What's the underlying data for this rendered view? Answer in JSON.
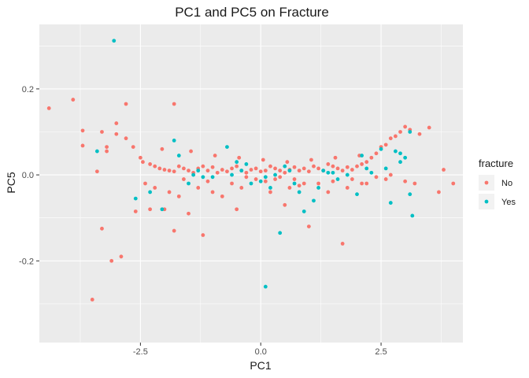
{
  "chart_data": {
    "type": "scatter",
    "title": "PC1 and PC5 on Fracture",
    "xlabel": "PC1",
    "ylabel": "PC5",
    "xlim": [
      -4.6,
      4.2
    ],
    "ylim": [
      -0.39,
      0.35
    ],
    "x_ticks": [
      -2.5,
      0.0,
      2.5
    ],
    "x_tick_labels": [
      "-2.5",
      "0.0",
      "2.5"
    ],
    "y_ticks": [
      -0.2,
      0.0,
      0.2
    ],
    "y_tick_labels": [
      "-0.2",
      "0.0",
      "0.2"
    ],
    "grid": true,
    "legend": {
      "title": "fracture",
      "placement": "right"
    },
    "colors": {
      "No": "#F8766D",
      "Yes": "#00BFC4",
      "panel": "#EBEBEB",
      "grid": "#FFFFFF"
    },
    "series": [
      {
        "name": "No",
        "color": "#F8766D",
        "x": [
          -4.4,
          -3.9,
          -3.7,
          -3.7,
          -3.4,
          -3.2,
          -3.2,
          -3.0,
          -2.8,
          -2.65,
          -2.5,
          -2.45,
          -2.3,
          -2.2,
          -2.1,
          -2.0,
          -1.9,
          -1.8,
          -1.7,
          -1.6,
          -1.5,
          -1.4,
          -1.3,
          -1.2,
          -1.1,
          -1.0,
          -0.9,
          -0.8,
          -0.7,
          -0.6,
          -0.5,
          -0.4,
          -0.3,
          -0.2,
          -0.1,
          0.0,
          0.1,
          0.2,
          0.3,
          0.4,
          0.5,
          0.6,
          0.7,
          0.8,
          0.9,
          1.0,
          1.1,
          1.2,
          1.3,
          1.4,
          1.5,
          1.6,
          1.7,
          1.8,
          1.9,
          2.0,
          2.1,
          2.2,
          2.3,
          2.4,
          2.5,
          2.6,
          2.7,
          2.8,
          2.9,
          3.0,
          3.1,
          3.3,
          3.5,
          3.7,
          3.8,
          4.0,
          -3.0,
          -2.8,
          -3.3,
          -3.5,
          -3.1,
          -2.9,
          -3.3,
          -1.8,
          -2.6,
          -2.3,
          -2.0,
          -1.8,
          -1.5,
          -1.2,
          -0.5,
          0.5,
          1.0,
          1.7,
          -2.4,
          -2.2,
          -1.9,
          -1.7,
          -1.3,
          -1.0,
          -0.8,
          -0.4,
          0.2,
          0.6,
          0.9,
          1.4,
          1.8,
          2.2,
          2.6,
          3.0,
          -1.6,
          -1.1,
          -0.6,
          0.3,
          0.8,
          1.2,
          1.5,
          1.9,
          2.1,
          2.4,
          2.7,
          3.2,
          -0.3,
          -0.1,
          0.1,
          0.4,
          0.7,
          -2.05,
          -1.45,
          -0.95,
          -0.45,
          0.05,
          0.55,
          1.05,
          1.55,
          2.05
        ],
        "y": [
          0.155,
          0.175,
          0.103,
          0.068,
          0.008,
          0.065,
          0.055,
          0.095,
          0.085,
          0.065,
          0.04,
          0.03,
          0.025,
          0.02,
          0.015,
          0.012,
          0.01,
          0.008,
          0.02,
          0.015,
          0.01,
          0.005,
          0.015,
          0.02,
          0.01,
          0.018,
          0.005,
          0.012,
          0.008,
          0.015,
          0.02,
          0.01,
          0.005,
          0.012,
          0.015,
          0.008,
          0.01,
          0.02,
          0.015,
          0.01,
          0.005,
          0.012,
          0.018,
          0.01,
          0.015,
          0.008,
          0.02,
          0.015,
          0.01,
          0.025,
          0.02,
          0.015,
          0.01,
          0.018,
          0.012,
          0.02,
          0.025,
          0.03,
          0.04,
          0.05,
          0.065,
          0.07,
          0.085,
          0.09,
          0.1,
          0.112,
          0.105,
          0.095,
          0.11,
          -0.04,
          0.012,
          -0.02,
          0.12,
          0.165,
          -0.125,
          -0.29,
          -0.2,
          -0.19,
          0.1,
          0.165,
          -0.085,
          -0.08,
          -0.08,
          -0.13,
          -0.09,
          -0.14,
          -0.08,
          -0.07,
          -0.12,
          -0.16,
          -0.02,
          -0.03,
          -0.04,
          -0.05,
          -0.03,
          -0.04,
          -0.05,
          -0.03,
          -0.04,
          -0.03,
          -0.02,
          -0.04,
          -0.03,
          -0.02,
          -0.01,
          -0.015,
          -0.01,
          -0.015,
          -0.02,
          -0.01,
          -0.025,
          -0.02,
          -0.015,
          -0.01,
          -0.02,
          -0.005,
          0.0,
          -0.02,
          -0.005,
          -0.01,
          -0.015,
          -0.005,
          -0.01,
          0.06,
          0.055,
          0.045,
          0.04,
          0.035,
          0.03,
          0.035,
          0.04,
          0.045
        ],
        "y_extra_note": ""
      },
      {
        "name": "Yes",
        "color": "#00BFC4",
        "x": [
          -3.05,
          -3.4,
          -1.8,
          -1.7,
          -1.4,
          -1.2,
          -0.7,
          -0.5,
          -0.4,
          -0.2,
          0.0,
          0.2,
          0.3,
          0.5,
          0.6,
          0.8,
          1.1,
          1.3,
          1.4,
          1.6,
          1.8,
          2.1,
          2.3,
          2.5,
          2.6,
          2.8,
          2.9,
          3.0,
          3.1,
          3.15,
          -2.6,
          -2.3,
          -2.05,
          -1.5,
          -1.0,
          -0.3,
          0.1,
          0.4,
          0.9,
          1.2,
          2.0,
          2.7,
          3.1,
          0.1,
          -0.6,
          -1.3,
          0.7,
          1.5,
          2.2,
          2.9
        ],
        "y": [
          0.312,
          0.055,
          0.08,
          0.045,
          0.0,
          -0.005,
          0.065,
          0.03,
          0.01,
          -0.02,
          -0.015,
          -0.03,
          0.0,
          0.02,
          0.01,
          -0.04,
          -0.06,
          0.01,
          0.005,
          -0.01,
          0.0,
          0.045,
          0.005,
          0.06,
          0.015,
          0.055,
          0.05,
          0.04,
          0.1,
          -0.095,
          -0.055,
          -0.04,
          -0.08,
          -0.02,
          -0.005,
          0.025,
          -0.26,
          -0.135,
          -0.085,
          -0.03,
          -0.045,
          -0.065,
          -0.045,
          -0.005,
          0.0,
          0.01,
          -0.02,
          0.005,
          0.015,
          0.03
        ]
      }
    ]
  }
}
